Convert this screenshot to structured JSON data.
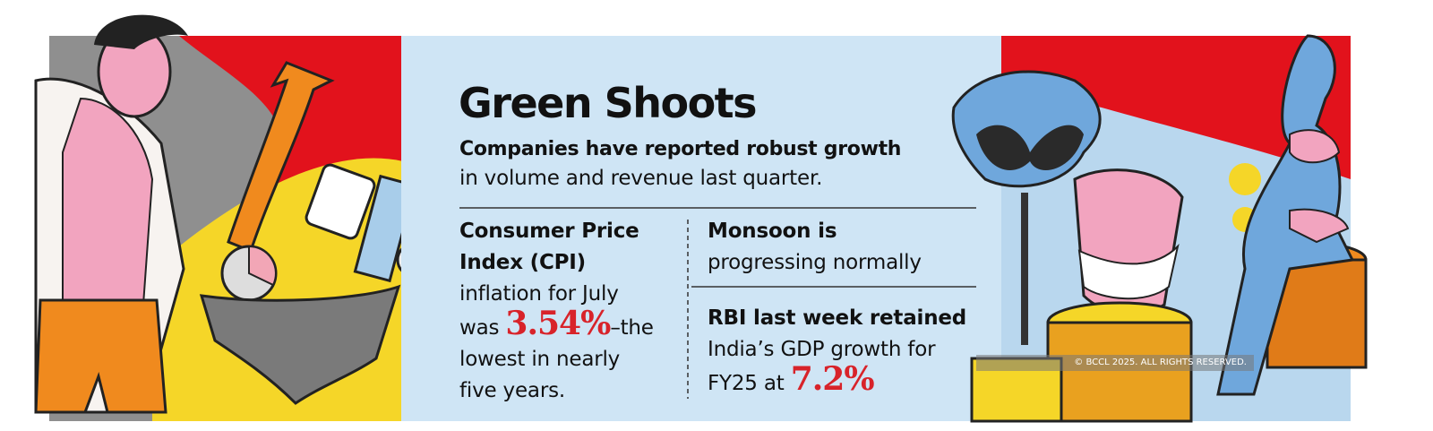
{
  "header": {
    "title": "Green Shoots",
    "subtitle_bold": "Companies have reported robust growth",
    "subtitle": "in volume and revenue last quarter."
  },
  "cpi": {
    "heading": [
      "Consumer Price",
      "Index (CPI)"
    ],
    "line1": "inflation for July",
    "before": "was",
    "highlight": "3.54%",
    "after": "–the",
    "line3": "lowest in nearly",
    "line4": "five years."
  },
  "monsoon": {
    "heading": "Monsoon is",
    "text": "progressing normally"
  },
  "rbi": {
    "heading": "RBI last week retained",
    "line1": "India’s GDP growth for",
    "before": "FY25 at",
    "highlight": "7.2%"
  },
  "copyright": "© BCCL 2025. ALL RIGHTS RESERVED."
}
